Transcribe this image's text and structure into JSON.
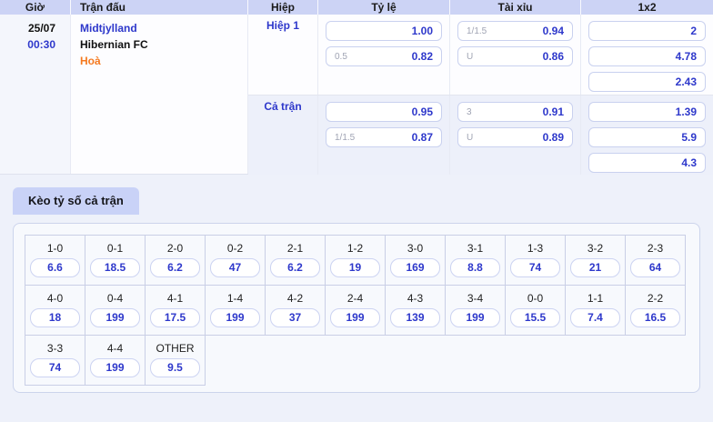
{
  "colors": {
    "accent-blue": "#2e38cb",
    "accent-orange": "#f5791f",
    "header-bg": "#ccd3f5",
    "tab-bg": "#c9d2f7",
    "section-alt-bg": "#edf0fa",
    "page-bg": "#eef1fa"
  },
  "odds_table": {
    "headers": [
      "Giờ",
      "Trận đấu",
      "Hiệp",
      "Tỷ lệ",
      "Tài xỉu",
      "1x2"
    ],
    "match": {
      "date": "25/07",
      "time": "00:30",
      "home": "Midtjylland",
      "away": "Hibernian FC",
      "draw": "Hoà"
    },
    "sections": [
      {
        "period": "Hiệp 1",
        "handicap": [
          {
            "line": "",
            "odds": "1.00"
          },
          {
            "line": "0.5",
            "odds": "0.82"
          }
        ],
        "over_under": [
          {
            "line": "1/1.5",
            "odds": "0.94"
          },
          {
            "line": "U",
            "odds": "0.86"
          }
        ],
        "one_x_two": [
          "2",
          "4.78",
          "2.43"
        ]
      },
      {
        "period": "Cả trận",
        "handicap": [
          {
            "line": "",
            "odds": "0.95"
          },
          {
            "line": "1/1.5",
            "odds": "0.87"
          }
        ],
        "over_under": [
          {
            "line": "3",
            "odds": "0.91"
          },
          {
            "line": "U",
            "odds": "0.89"
          }
        ],
        "one_x_two": [
          "1.39",
          "5.9",
          "4.3"
        ]
      }
    ]
  },
  "correct_score": {
    "tab_label": "Kèo tỷ số cả trận",
    "rows": {
      "row1": [
        {
          "score": "1-0",
          "odds": "6.6"
        },
        {
          "score": "0-1",
          "odds": "18.5"
        },
        {
          "score": "2-0",
          "odds": "6.2"
        },
        {
          "score": "0-2",
          "odds": "47"
        },
        {
          "score": "2-1",
          "odds": "6.2"
        },
        {
          "score": "1-2",
          "odds": "19"
        },
        {
          "score": "3-0",
          "odds": "169"
        },
        {
          "score": "3-1",
          "odds": "8.8"
        },
        {
          "score": "1-3",
          "odds": "74"
        },
        {
          "score": "3-2",
          "odds": "21"
        },
        {
          "score": "2-3",
          "odds": "64"
        }
      ],
      "row2": [
        {
          "score": "4-0",
          "odds": "18"
        },
        {
          "score": "0-4",
          "odds": "199"
        },
        {
          "score": "4-1",
          "odds": "17.5"
        },
        {
          "score": "1-4",
          "odds": "199"
        },
        {
          "score": "4-2",
          "odds": "37"
        },
        {
          "score": "2-4",
          "odds": "199"
        },
        {
          "score": "4-3",
          "odds": "139"
        },
        {
          "score": "3-4",
          "odds": "199"
        },
        {
          "score": "0-0",
          "odds": "15.5"
        },
        {
          "score": "1-1",
          "odds": "7.4"
        },
        {
          "score": "2-2",
          "odds": "16.5"
        }
      ],
      "row3": [
        {
          "score": "3-3",
          "odds": "74"
        },
        {
          "score": "4-4",
          "odds": "199"
        },
        {
          "score": "OTHER",
          "odds": "9.5"
        }
      ]
    }
  }
}
